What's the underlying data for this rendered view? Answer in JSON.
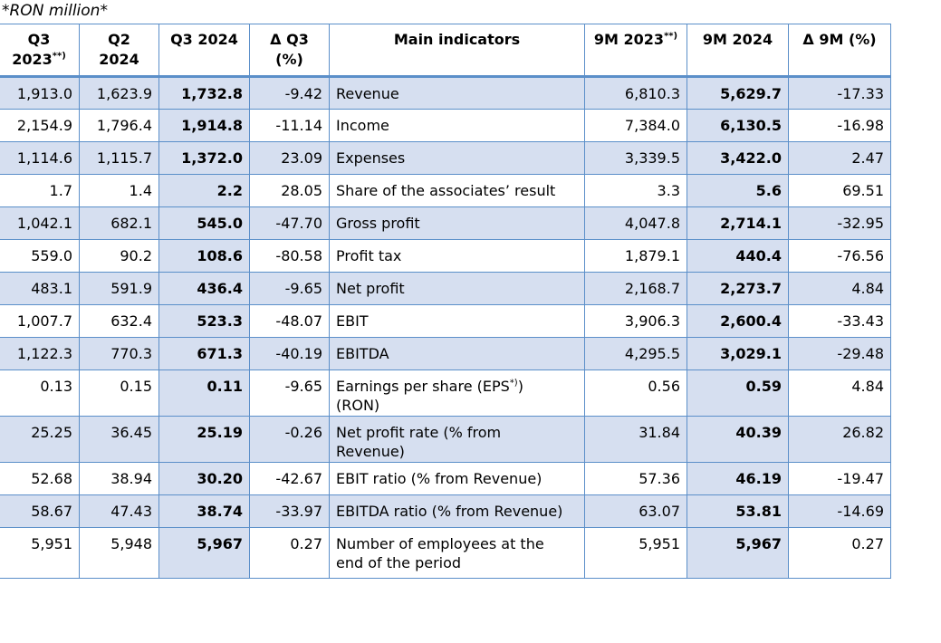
{
  "unit_note": "*RON million*",
  "headers": {
    "q3_2023": "Q3",
    "q3_2023_line2": "2023",
    "q3_2023_sup": "**)",
    "q2_2024": "Q2",
    "q2_2024_line2": "2024",
    "q3_2024": "Q3 2024",
    "delta_q3": "Δ Q3",
    "delta_q3_unit": "(%)",
    "main_indicators": "Main indicators",
    "m9_2023": "9M 2023",
    "m9_2023_sup": "**)",
    "m9_2024": "9M 2024",
    "delta_9m": "Δ 9M (%)"
  },
  "rows": [
    {
      "q3_2023": "1,913.0",
      "q2_2024": "1,623.9",
      "q3_2024": "1,732.8",
      "delta_q3": "-9.42",
      "indicator": "Revenue",
      "m9_2023": "6,810.3",
      "m9_2024": "5,629.7",
      "delta_9m": "-17.33"
    },
    {
      "q3_2023": "2,154.9",
      "q2_2024": "1,796.4",
      "q3_2024": "1,914.8",
      "delta_q3": "-11.14",
      "indicator": "Income",
      "m9_2023": "7,384.0",
      "m9_2024": "6,130.5",
      "delta_9m": "-16.98"
    },
    {
      "q3_2023": "1,114.6",
      "q2_2024": "1,115.7",
      "q3_2024": "1,372.0",
      "delta_q3": "23.09",
      "indicator": "Expenses",
      "m9_2023": "3,339.5",
      "m9_2024": "3,422.0",
      "delta_9m": "2.47"
    },
    {
      "q3_2023": "1.7",
      "q2_2024": "1.4",
      "q3_2024": "2.2",
      "delta_q3": "28.05",
      "indicator": "Share of the associates’ result",
      "m9_2023": "3.3",
      "m9_2024": "5.6",
      "delta_9m": "69.51"
    },
    {
      "q3_2023": "1,042.1",
      "q2_2024": "682.1",
      "q3_2024": "545.0",
      "delta_q3": "-47.70",
      "indicator": "Gross profit",
      "m9_2023": "4,047.8",
      "m9_2024": "2,714.1",
      "delta_9m": "-32.95"
    },
    {
      "q3_2023": "559.0",
      "q2_2024": "90.2",
      "q3_2024": "108.6",
      "delta_q3": "-80.58",
      "indicator": "Profit tax",
      "m9_2023": "1,879.1",
      "m9_2024": "440.4",
      "delta_9m": "-76.56"
    },
    {
      "q3_2023": "483.1",
      "q2_2024": "591.9",
      "q3_2024": "436.4",
      "delta_q3": "-9.65",
      "indicator": "Net profit",
      "m9_2023": "2,168.7",
      "m9_2024": "2,273.7",
      "delta_9m": "4.84"
    },
    {
      "q3_2023": "1,007.7",
      "q2_2024": "632.4",
      "q3_2024": "523.3",
      "delta_q3": "-48.07",
      "indicator": "EBIT",
      "m9_2023": "3,906.3",
      "m9_2024": "2,600.4",
      "delta_9m": "-33.43"
    },
    {
      "q3_2023": "1,122.3",
      "q2_2024": "770.3",
      "q3_2024": "671.3",
      "delta_q3": "-40.19",
      "indicator": "EBITDA",
      "m9_2023": "4,295.5",
      "m9_2024": "3,029.1",
      "delta_9m": "-29.48"
    },
    {
      "q3_2023": "0.13",
      "q2_2024": "0.15",
      "q3_2024": "0.11",
      "delta_q3": "-9.65",
      "indicator": "Earnings per share (EPS",
      "indicator_sup": "*)",
      "indicator_tail": ")",
      "indicator_line2": "(RON)",
      "m9_2023": "0.56",
      "m9_2024": "0.59",
      "delta_9m": "4.84"
    },
    {
      "q3_2023": "25.25",
      "q2_2024": "36.45",
      "q3_2024": "25.19",
      "delta_q3": "-0.26",
      "indicator": "Net profit rate (% from",
      "indicator_line2": "Revenue)",
      "m9_2023": "31.84",
      "m9_2024": "40.39",
      "delta_9m": "26.82"
    },
    {
      "q3_2023": "52.68",
      "q2_2024": "38.94",
      "q3_2024": "30.20",
      "delta_q3": "-42.67",
      "indicator": "EBIT ratio (% from Revenue)",
      "m9_2023": "57.36",
      "m9_2024": "46.19",
      "delta_9m": "-19.47"
    },
    {
      "q3_2023": "58.67",
      "q2_2024": "47.43",
      "q3_2024": "38.74",
      "delta_q3": "-33.97",
      "indicator": "EBITDA ratio (% from Revenue)",
      "m9_2023": "63.07",
      "m9_2024": "53.81",
      "delta_9m": "-14.69"
    },
    {
      "q3_2023": "5,951",
      "q2_2024": "5,948",
      "q3_2024": "5,967",
      "delta_q3": "0.27",
      "indicator": "Number of employees at the",
      "indicator_line2": "end of the period",
      "m9_2023": "5,951",
      "m9_2024": "5,967",
      "delta_9m": "0.27"
    }
  ],
  "colors": {
    "border": "#5b8fc9",
    "shade": "#d6dff0"
  }
}
